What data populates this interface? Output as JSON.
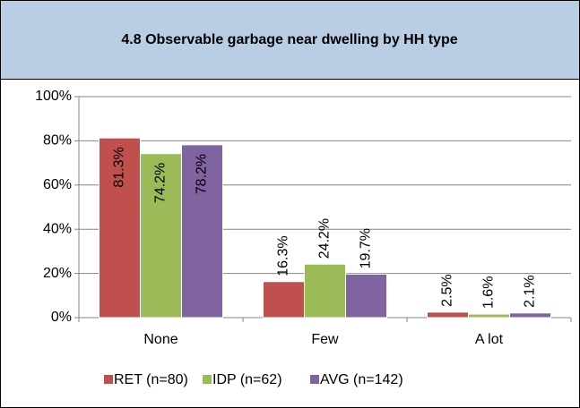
{
  "chart_data": {
    "type": "bar",
    "title": "4.8 Observable garbage near dwelling by HH type",
    "categories": [
      "None",
      "Few",
      "A lot"
    ],
    "series": [
      {
        "name": "RET (n=80)",
        "color": "#c0504d",
        "values": [
          81.3,
          16.3,
          2.5
        ],
        "value_labels": [
          "81.3%",
          "16.3%",
          "2.5%"
        ]
      },
      {
        "name": "IDP (n=62)",
        "color": "#9bbb59",
        "values": [
          74.2,
          24.2,
          1.6
        ],
        "value_labels": [
          "74.2%",
          "24.2%",
          "1.6%"
        ]
      },
      {
        "name": "AVG (n=142)",
        "color": "#8064a2",
        "values": [
          78.2,
          19.7,
          2.1
        ],
        "value_labels": [
          "78.2%",
          "19.7%",
          "2.1%"
        ]
      }
    ],
    "ylim": [
      0,
      100
    ],
    "yticks": [
      {
        "value": 0,
        "label": "0%"
      },
      {
        "value": 20,
        "label": "20%"
      },
      {
        "value": 40,
        "label": "40%"
      },
      {
        "value": 60,
        "label": "60%"
      },
      {
        "value": 80,
        "label": "80%"
      },
      {
        "value": 100,
        "label": "100%"
      }
    ],
    "grid": true,
    "legend": "bottom"
  }
}
